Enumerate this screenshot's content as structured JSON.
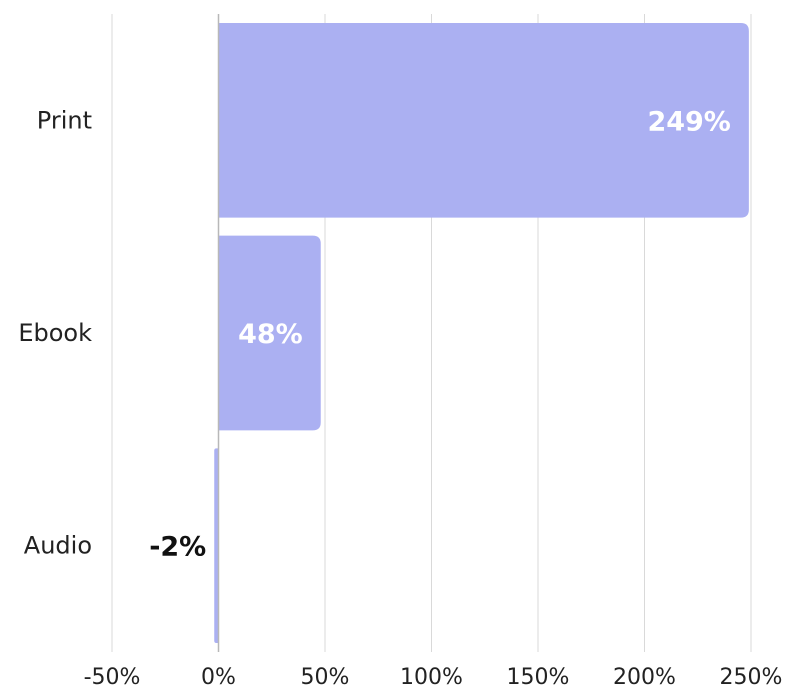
{
  "chart_data": {
    "type": "bar",
    "orientation": "horizontal",
    "categories": [
      "Print",
      "Ebook",
      "Audio"
    ],
    "values": [
      249,
      48,
      -2
    ],
    "data_labels": [
      "249%",
      "48%",
      "-2%"
    ],
    "xlim": [
      -50,
      250
    ],
    "x_ticks": [
      -50,
      0,
      50,
      100,
      150,
      200,
      250
    ],
    "x_tick_labels": [
      "-50%",
      "0%",
      "50%",
      "100%",
      "150%",
      "200%",
      "250%"
    ],
    "grid": "vertical",
    "legend": "none",
    "colors": {
      "bar": "#abb0f2",
      "grid": "#d9d9d9",
      "zero_line": "#b8b8b8",
      "label_inside": "#ffffff",
      "label_outside": "#111111"
    }
  }
}
